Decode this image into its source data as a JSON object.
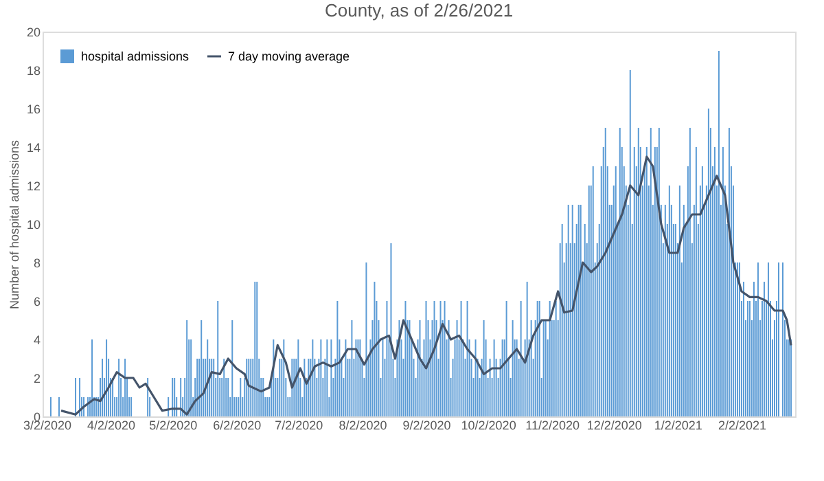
{
  "chart_data": {
    "type": "bar",
    "title": "County, as of 2/26/2021",
    "ylabel": "Number of hospital admissions",
    "xlim": [
      "2020-02-29",
      "2021-02-28"
    ],
    "xticks": [
      {
        "value": "2020-03-02",
        "label": "3/2/2020"
      },
      {
        "value": "2020-04-02",
        "label": "4/2/2020"
      },
      {
        "value": "2020-05-02",
        "label": "5/2/2020"
      },
      {
        "value": "2020-06-02",
        "label": "6/2/2020"
      },
      {
        "value": "2020-07-02",
        "label": "7/2/2020"
      },
      {
        "value": "2020-08-02",
        "label": "8/2/2020"
      },
      {
        "value": "2020-09-02",
        "label": "9/2/2020"
      },
      {
        "value": "2020-10-02",
        "label": "10/2/2020"
      },
      {
        "value": "2020-11-02",
        "label": "11/2/2020"
      },
      {
        "value": "2020-12-02",
        "label": "12/2/2020"
      },
      {
        "value": "2021-01-02",
        "label": "1/2/2021"
      },
      {
        "value": "2021-02-02",
        "label": "2/2/2021"
      }
    ],
    "ylim": [
      0,
      20
    ],
    "yticks": [
      0,
      2,
      4,
      6,
      8,
      10,
      12,
      14,
      16,
      18,
      20
    ],
    "grid": false,
    "legend": "top left",
    "series": [
      {
        "name": "hospital admissions",
        "color": "#5b9bd5",
        "x": [
          "2020-03-02",
          "2020-03-03",
          "2020-03-04",
          "2020-03-05",
          "2020-03-06",
          "2020-03-07",
          "2020-03-08",
          "2020-03-09",
          "2020-03-10",
          "2020-03-11",
          "2020-03-12",
          "2020-03-13",
          "2020-03-14",
          "2020-03-15",
          "2020-03-16",
          "2020-03-17",
          "2020-03-18",
          "2020-03-19",
          "2020-03-20",
          "2020-03-21",
          "2020-03-22",
          "2020-03-23",
          "2020-03-24",
          "2020-03-25",
          "2020-03-26",
          "2020-03-27",
          "2020-03-28",
          "2020-03-29",
          "2020-03-30",
          "2020-03-31",
          "2020-04-01",
          "2020-04-02",
          "2020-04-03",
          "2020-04-04",
          "2020-04-05",
          "2020-04-06",
          "2020-04-07",
          "2020-04-08",
          "2020-04-09",
          "2020-04-10",
          "2020-04-11",
          "2020-04-12",
          "2020-04-13",
          "2020-04-14",
          "2020-04-15",
          "2020-04-16",
          "2020-04-17",
          "2020-04-18",
          "2020-04-19",
          "2020-04-20",
          "2020-04-21",
          "2020-04-22",
          "2020-04-23",
          "2020-04-24",
          "2020-04-25",
          "2020-04-26",
          "2020-04-27",
          "2020-04-28",
          "2020-04-29",
          "2020-04-30",
          "2020-05-01",
          "2020-05-02",
          "2020-05-03",
          "2020-05-04",
          "2020-05-05",
          "2020-05-06",
          "2020-05-07",
          "2020-05-08",
          "2020-05-09",
          "2020-05-10",
          "2020-05-11",
          "2020-05-12",
          "2020-05-13",
          "2020-05-14",
          "2020-05-15",
          "2020-05-16",
          "2020-05-17",
          "2020-05-18",
          "2020-05-19",
          "2020-05-20",
          "2020-05-21",
          "2020-05-22",
          "2020-05-23",
          "2020-05-24",
          "2020-05-25",
          "2020-05-26",
          "2020-05-27",
          "2020-05-28",
          "2020-05-29",
          "2020-05-30",
          "2020-05-31",
          "2020-06-01",
          "2020-06-02",
          "2020-06-03",
          "2020-06-04",
          "2020-06-05",
          "2020-06-06",
          "2020-06-07",
          "2020-06-08",
          "2020-06-09",
          "2020-06-10",
          "2020-06-11",
          "2020-06-12",
          "2020-06-13",
          "2020-06-14",
          "2020-06-15",
          "2020-06-16",
          "2020-06-17",
          "2020-06-18",
          "2020-06-19",
          "2020-06-20",
          "2020-06-21",
          "2020-06-22",
          "2020-06-23",
          "2020-06-24",
          "2020-06-25",
          "2020-06-26",
          "2020-06-27",
          "2020-06-28",
          "2020-06-29",
          "2020-06-30",
          "2020-07-01",
          "2020-07-02",
          "2020-07-03",
          "2020-07-04",
          "2020-07-05",
          "2020-07-06",
          "2020-07-07",
          "2020-07-08",
          "2020-07-09",
          "2020-07-10",
          "2020-07-11",
          "2020-07-12",
          "2020-07-13",
          "2020-07-14",
          "2020-07-15",
          "2020-07-16",
          "2020-07-17",
          "2020-07-18",
          "2020-07-19",
          "2020-07-20",
          "2020-07-21",
          "2020-07-22",
          "2020-07-23",
          "2020-07-24",
          "2020-07-25",
          "2020-07-26",
          "2020-07-27",
          "2020-07-28",
          "2020-07-29",
          "2020-07-30",
          "2020-07-31",
          "2020-08-01",
          "2020-08-02",
          "2020-08-03",
          "2020-08-04",
          "2020-08-05",
          "2020-08-06",
          "2020-08-07",
          "2020-08-08",
          "2020-08-09",
          "2020-08-10",
          "2020-08-11",
          "2020-08-12",
          "2020-08-13",
          "2020-08-14",
          "2020-08-15",
          "2020-08-16",
          "2020-08-17",
          "2020-08-18",
          "2020-08-19",
          "2020-08-20",
          "2020-08-21",
          "2020-08-22",
          "2020-08-23",
          "2020-08-24",
          "2020-08-25",
          "2020-08-26",
          "2020-08-27",
          "2020-08-28",
          "2020-08-29",
          "2020-08-30",
          "2020-08-31",
          "2020-09-01",
          "2020-09-02",
          "2020-09-03",
          "2020-09-04",
          "2020-09-05",
          "2020-09-06",
          "2020-09-07",
          "2020-09-08",
          "2020-09-09",
          "2020-09-10",
          "2020-09-11",
          "2020-09-12",
          "2020-09-13",
          "2020-09-14",
          "2020-09-15",
          "2020-09-16",
          "2020-09-17",
          "2020-09-18",
          "2020-09-19",
          "2020-09-20",
          "2020-09-21",
          "2020-09-22",
          "2020-09-23",
          "2020-09-24",
          "2020-09-25",
          "2020-09-26",
          "2020-09-27",
          "2020-09-28",
          "2020-09-29",
          "2020-09-30",
          "2020-10-01",
          "2020-10-02",
          "2020-10-03",
          "2020-10-04",
          "2020-10-05",
          "2020-10-06",
          "2020-10-07",
          "2020-10-08",
          "2020-10-09",
          "2020-10-10",
          "2020-10-11",
          "2020-10-12",
          "2020-10-13",
          "2020-10-14",
          "2020-10-15",
          "2020-10-16",
          "2020-10-17",
          "2020-10-18",
          "2020-10-19",
          "2020-10-20",
          "2020-10-21",
          "2020-10-22",
          "2020-10-23",
          "2020-10-24",
          "2020-10-25",
          "2020-10-26",
          "2020-10-27",
          "2020-10-28",
          "2020-10-29",
          "2020-10-30",
          "2020-10-31",
          "2020-11-01",
          "2020-11-02",
          "2020-11-03",
          "2020-11-04",
          "2020-11-05",
          "2020-11-06",
          "2020-11-07",
          "2020-11-08",
          "2020-11-09",
          "2020-11-10",
          "2020-11-11",
          "2020-11-12",
          "2020-11-13",
          "2020-11-14",
          "2020-11-15",
          "2020-11-16",
          "2020-11-17",
          "2020-11-18",
          "2020-11-19",
          "2020-11-20",
          "2020-11-21",
          "2020-11-22",
          "2020-11-23",
          "2020-11-24",
          "2020-11-25",
          "2020-11-26",
          "2020-11-27",
          "2020-11-28",
          "2020-11-29",
          "2020-11-30",
          "2020-12-01",
          "2020-12-02",
          "2020-12-03",
          "2020-12-04",
          "2020-12-05",
          "2020-12-06",
          "2020-12-07",
          "2020-12-08",
          "2020-12-09",
          "2020-12-10",
          "2020-12-11",
          "2020-12-12",
          "2020-12-13",
          "2020-12-14",
          "2020-12-15",
          "2020-12-16",
          "2020-12-17",
          "2020-12-18",
          "2020-12-19",
          "2020-12-20",
          "2020-12-21",
          "2020-12-22",
          "2020-12-23",
          "2020-12-24",
          "2020-12-25",
          "2020-12-26",
          "2020-12-27",
          "2020-12-28",
          "2020-12-29",
          "2020-12-30",
          "2020-12-31",
          "2021-01-01",
          "2021-01-02",
          "2021-01-03",
          "2021-01-04",
          "2021-01-05",
          "2021-01-06",
          "2021-01-07",
          "2021-01-08",
          "2021-01-09",
          "2021-01-10",
          "2021-01-11",
          "2021-01-12",
          "2021-01-13",
          "2021-01-14",
          "2021-01-15",
          "2021-01-16",
          "2021-01-17",
          "2021-01-18",
          "2021-01-19",
          "2021-01-20",
          "2021-01-21",
          "2021-01-22",
          "2021-01-23",
          "2021-01-24",
          "2021-01-25",
          "2021-01-26",
          "2021-01-27",
          "2021-01-28",
          "2021-01-29",
          "2021-01-30",
          "2021-01-31",
          "2021-02-01",
          "2021-02-02",
          "2021-02-03",
          "2021-02-04",
          "2021-02-05",
          "2021-02-06",
          "2021-02-07",
          "2021-02-08",
          "2021-02-09",
          "2021-02-10",
          "2021-02-11",
          "2021-02-12",
          "2021-02-13",
          "2021-02-14",
          "2021-02-15",
          "2021-02-16",
          "2021-02-17",
          "2021-02-18",
          "2021-02-19",
          "2021-02-20",
          "2021-02-21",
          "2021-02-22",
          "2021-02-23",
          "2021-02-24",
          "2021-02-25",
          "2021-02-26"
        ],
        "values": [
          0,
          0,
          1,
          0,
          0,
          0,
          1,
          0,
          0,
          0,
          0,
          0,
          0,
          0,
          2,
          0,
          2,
          1,
          1,
          0,
          1,
          1,
          4,
          1,
          1,
          1,
          2,
          3,
          2,
          4,
          3,
          2,
          2,
          1,
          1,
          3,
          2,
          1,
          3,
          2,
          1,
          1,
          0,
          0,
          0,
          0,
          0,
          0,
          0,
          2,
          1,
          0,
          0,
          0,
          0,
          0,
          0,
          0,
          0,
          1,
          0,
          2,
          2,
          1,
          0,
          2,
          1,
          2,
          5,
          4,
          4,
          1,
          2,
          3,
          3,
          5,
          3,
          3,
          4,
          3,
          3,
          3,
          2,
          6,
          2,
          2,
          3,
          2,
          2,
          1,
          5,
          1,
          1,
          1,
          2,
          1,
          2,
          3,
          3,
          3,
          3,
          7,
          7,
          3,
          2,
          2,
          1,
          1,
          1,
          2,
          4,
          2,
          2,
          3,
          3,
          4,
          2,
          1,
          1,
          3,
          3,
          3,
          4,
          2,
          1,
          3,
          2,
          3,
          3,
          4,
          3,
          2,
          3,
          4,
          2,
          3,
          4,
          1,
          4,
          2,
          3,
          6,
          4,
          3,
          2,
          4,
          3,
          3,
          5,
          3,
          4,
          4,
          4,
          3,
          2,
          8,
          3,
          4,
          5,
          7,
          6,
          5,
          2,
          4,
          3,
          6,
          4,
          9,
          3,
          2,
          4,
          5,
          4,
          3,
          6,
          5,
          5,
          4,
          3,
          2,
          4,
          5,
          3,
          4,
          6,
          5,
          4,
          5,
          6,
          5,
          3,
          6,
          5,
          6,
          4,
          5,
          2,
          3,
          4,
          5,
          4,
          6,
          4,
          3,
          6,
          4,
          3,
          2,
          4,
          3,
          2,
          3,
          5,
          4,
          2,
          3,
          2,
          4,
          3,
          2,
          3,
          4,
          4,
          6,
          3,
          2,
          5,
          4,
          4,
          3,
          6,
          3,
          4,
          7,
          4,
          5,
          3,
          5,
          6,
          6,
          2,
          5,
          5,
          4,
          6,
          5,
          5,
          6,
          5,
          9,
          10,
          8,
          9,
          11,
          9,
          11,
          9,
          10,
          11,
          11,
          8,
          10,
          9,
          12,
          12,
          13,
          8,
          9,
          10,
          13,
          14,
          15,
          13,
          11,
          11,
          12,
          13,
          10,
          15,
          14,
          13,
          12,
          11,
          18,
          10,
          14,
          13,
          15,
          14,
          12,
          13,
          14,
          12,
          15,
          11,
          14,
          14,
          15,
          11,
          9,
          11,
          10,
          12,
          11,
          10,
          10,
          9,
          12,
          8,
          11,
          10,
          13,
          15,
          9,
          11,
          14,
          10,
          12,
          13,
          11,
          12,
          16,
          15,
          13,
          14,
          12,
          19,
          11,
          14,
          12,
          10,
          15,
          13,
          12,
          8,
          8,
          8,
          6,
          7,
          5,
          6,
          6,
          5,
          7,
          6,
          8,
          5,
          6,
          7,
          6,
          8,
          6,
          4,
          5,
          6,
          8,
          0,
          8,
          5,
          4,
          4,
          4
        ]
      },
      {
        "name": "7 day moving average",
        "type": "line",
        "color": "#44546a",
        "x": [
          "2020-03-09",
          "2020-03-16",
          "2020-03-20",
          "2020-03-25",
          "2020-03-28",
          "2020-04-01",
          "2020-04-05",
          "2020-04-09",
          "2020-04-13",
          "2020-04-16",
          "2020-04-19",
          "2020-04-23",
          "2020-04-27",
          "2020-05-02",
          "2020-05-06",
          "2020-05-09",
          "2020-05-13",
          "2020-05-17",
          "2020-05-21",
          "2020-05-25",
          "2020-05-29",
          "2020-06-02",
          "2020-06-06",
          "2020-06-08",
          "2020-06-14",
          "2020-06-18",
          "2020-06-22",
          "2020-06-26",
          "2020-06-29",
          "2020-07-03",
          "2020-07-06",
          "2020-07-10",
          "2020-07-14",
          "2020-07-18",
          "2020-07-22",
          "2020-07-26",
          "2020-07-30",
          "2020-08-03",
          "2020-08-07",
          "2020-08-11",
          "2020-08-15",
          "2020-08-18",
          "2020-08-22",
          "2020-08-26",
          "2020-08-30",
          "2020-09-02",
          "2020-09-06",
          "2020-09-10",
          "2020-09-14",
          "2020-09-18",
          "2020-09-22",
          "2020-09-26",
          "2020-09-30",
          "2020-10-04",
          "2020-10-08",
          "2020-10-12",
          "2020-10-16",
          "2020-10-20",
          "2020-10-24",
          "2020-10-28",
          "2020-11-01",
          "2020-11-05",
          "2020-11-08",
          "2020-11-12",
          "2020-11-17",
          "2020-11-21",
          "2020-11-24",
          "2020-11-28",
          "2020-12-02",
          "2020-12-06",
          "2020-12-10",
          "2020-12-14",
          "2020-12-18",
          "2020-12-21",
          "2020-12-25",
          "2020-12-29",
          "2021-01-02",
          "2021-01-05",
          "2021-01-09",
          "2021-01-13",
          "2021-01-17",
          "2021-01-21",
          "2021-01-25",
          "2021-01-29",
          "2021-02-02",
          "2021-02-06",
          "2021-02-10",
          "2021-02-14",
          "2021-02-18",
          "2021-02-22",
          "2021-02-24",
          "2021-02-26"
        ],
        "values": [
          0.3,
          0.1,
          0.5,
          0.9,
          0.8,
          1.5,
          2.3,
          2.0,
          2.0,
          1.5,
          1.7,
          1.0,
          0.3,
          0.4,
          0.4,
          0.1,
          0.8,
          1.2,
          2.3,
          2.2,
          3.0,
          2.5,
          2.2,
          1.6,
          1.3,
          1.5,
          3.7,
          2.8,
          1.5,
          2.5,
          1.7,
          2.6,
          2.8,
          2.6,
          2.8,
          3.5,
          3.5,
          2.7,
          3.5,
          4.0,
          4.2,
          3.0,
          5.0,
          4.0,
          3.0,
          2.5,
          3.5,
          4.8,
          4.0,
          4.2,
          3.5,
          3.0,
          2.2,
          2.5,
          2.5,
          3.0,
          3.5,
          2.8,
          4.2,
          5.0,
          5.0,
          6.5,
          5.4,
          5.5,
          8.0,
          7.5,
          7.8,
          8.5,
          9.5,
          10.5,
          12.0,
          11.5,
          13.5,
          13.0,
          10.0,
          8.5,
          8.5,
          9.8,
          10.5,
          10.5,
          11.5,
          12.5,
          11.5,
          8.0,
          6.5,
          6.2,
          6.2,
          6.0,
          5.5,
          5.5,
          5.0,
          3.7
        ]
      }
    ]
  }
}
